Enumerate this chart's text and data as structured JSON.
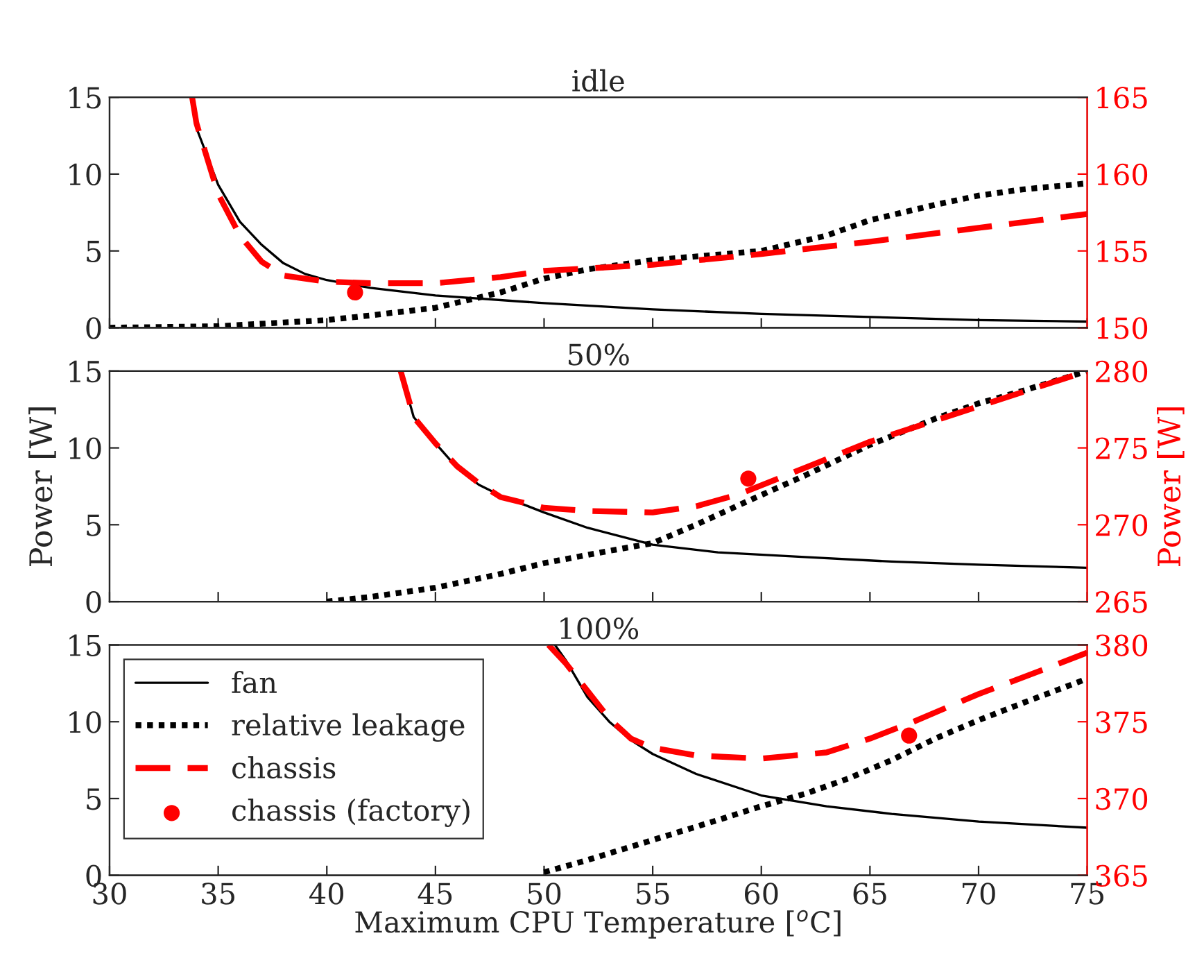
{
  "chart_data": [
    {
      "type": "line",
      "title": "idle",
      "xlim": [
        30,
        75
      ],
      "xticks": [
        30,
        35,
        40,
        45,
        50,
        55,
        60,
        65,
        70,
        75
      ],
      "ylim": [
        0,
        15
      ],
      "yticks": [
        0,
        5,
        10,
        15
      ],
      "y2lim": [
        150,
        165
      ],
      "y2ticks": [
        150,
        155,
        160,
        165
      ],
      "tick_labels": "y",
      "grid": false,
      "legend": false,
      "series": [
        {
          "type": "line",
          "color": "#000000",
          "line_style": "solid",
          "x": [
            33.8,
            34,
            35,
            36,
            37,
            38,
            39,
            40,
            42,
            45,
            50,
            55,
            60,
            65,
            70,
            75
          ],
          "values": [
            15,
            13,
            9.3,
            6.9,
            5.4,
            4.2,
            3.5,
            3.1,
            2.6,
            2.1,
            1.6,
            1.2,
            0.9,
            0.7,
            0.5,
            0.4
          ]
        },
        {
          "type": "line",
          "color": "#000000",
          "line_style": "dotted",
          "x": [
            30,
            35,
            40,
            42,
            45,
            48,
            50,
            52,
            55,
            60,
            63,
            65,
            68,
            70,
            72,
            75
          ],
          "values": [
            0,
            0.1,
            0.5,
            0.8,
            1.3,
            2.3,
            3.2,
            3.8,
            4.4,
            5.0,
            6.0,
            7.0,
            8.0,
            8.6,
            9.0,
            9.4
          ]
        },
        {
          "type": "line",
          "color": "#ff0000",
          "line_style": "dashed",
          "axis": "y2",
          "x": [
            33.8,
            34,
            35,
            36,
            37,
            38,
            40,
            42,
            45,
            48,
            50,
            55,
            60,
            65,
            70,
            75
          ],
          "values": [
            165,
            163.3,
            158.7,
            156,
            154.3,
            153.4,
            153.0,
            152.9,
            152.9,
            153.3,
            153.7,
            154.1,
            154.8,
            155.6,
            156.5,
            157.4
          ]
        },
        {
          "type": "scatter",
          "color": "#ff0000",
          "marker": "circle",
          "axis": "y2",
          "x": [
            41.3
          ],
          "values": [
            152.3
          ]
        }
      ]
    },
    {
      "type": "line",
      "title": "50%",
      "ylabel": "Power [W]",
      "y2label": "Power [W]",
      "xlim": [
        30,
        75
      ],
      "xticks": [
        30,
        35,
        40,
        45,
        50,
        55,
        60,
        65,
        70,
        75
      ],
      "ylim": [
        0,
        15
      ],
      "yticks": [
        0,
        5,
        10,
        15
      ],
      "y2lim": [
        265,
        280
      ],
      "y2ticks": [
        265,
        270,
        275,
        280
      ],
      "tick_labels": "y",
      "grid": false,
      "legend": false,
      "series": [
        {
          "type": "line",
          "color": "#000000",
          "line_style": "solid",
          "x": [
            43.4,
            44,
            45,
            46,
            47,
            48,
            50,
            52,
            55,
            58,
            62,
            66,
            70,
            75
          ],
          "values": [
            15,
            12,
            10.3,
            8.7,
            7.6,
            6.9,
            5.8,
            4.8,
            3.7,
            3.2,
            2.9,
            2.6,
            2.4,
            2.2
          ]
        },
        {
          "type": "line",
          "color": "#000000",
          "line_style": "dotted",
          "x": [
            40,
            42,
            45,
            48,
            50,
            53,
            55,
            57,
            59,
            62,
            65,
            68,
            70,
            72,
            75
          ],
          "values": [
            0,
            0.3,
            0.9,
            1.8,
            2.5,
            3.3,
            3.8,
            5.0,
            6.3,
            8.2,
            10.2,
            11.9,
            12.9,
            13.7,
            15.0
          ]
        },
        {
          "type": "line",
          "color": "#ff0000",
          "line_style": "dashed",
          "axis": "y2",
          "x": [
            43.4,
            44,
            45,
            46,
            47,
            48,
            50,
            52,
            55,
            57,
            59,
            62,
            65,
            70,
            75
          ],
          "values": [
            280,
            277,
            275.3,
            273.8,
            272.7,
            271.8,
            271.1,
            270.9,
            270.8,
            271.2,
            272.0,
            273.7,
            275.4,
            277.7,
            280
          ]
        },
        {
          "type": "scatter",
          "color": "#ff0000",
          "marker": "circle",
          "axis": "y2",
          "x": [
            59.4
          ],
          "values": [
            273.0
          ]
        }
      ]
    },
    {
      "type": "line",
      "title": "100%",
      "xlabel": "Maximum CPU Temperature [$^{o}$C]",
      "xlim": [
        30,
        75
      ],
      "xticks": [
        30,
        35,
        40,
        45,
        50,
        55,
        60,
        65,
        70,
        75
      ],
      "ylim": [
        0,
        15
      ],
      "yticks": [
        0,
        5,
        10,
        15
      ],
      "y2lim": [
        365,
        380
      ],
      "y2ticks": [
        365,
        370,
        375,
        380
      ],
      "grid": false,
      "legend": "top left",
      "series": [
        {
          "name": "fan",
          "type": "line",
          "color": "#000000",
          "line_style": "solid",
          "x": [
            50.5,
            51,
            52,
            53,
            54,
            55,
            57,
            60,
            63,
            66,
            70,
            75
          ],
          "values": [
            15,
            14,
            11.6,
            10.0,
            8.8,
            7.9,
            6.6,
            5.2,
            4.5,
            4.0,
            3.5,
            3.1
          ]
        },
        {
          "name": "relative leakage",
          "type": "line",
          "color": "#000000",
          "line_style": "dotted",
          "x": [
            50,
            52,
            55,
            58,
            60,
            62,
            64,
            66,
            68,
            70,
            72,
            75
          ],
          "values": [
            0.2,
            1.0,
            2.3,
            3.6,
            4.5,
            5.3,
            6.3,
            7.5,
            8.9,
            10.1,
            11.2,
            12.8
          ]
        },
        {
          "name": "chassis",
          "type": "line",
          "color": "#ff0000",
          "line_style": "dashed",
          "axis": "y2",
          "x": [
            50.2,
            51,
            52,
            53,
            54,
            55,
            57,
            60,
            63,
            65,
            67,
            70,
            73,
            75
          ],
          "values": [
            380,
            378.8,
            377,
            375.2,
            373.9,
            373.3,
            372.8,
            372.6,
            373.0,
            373.9,
            375.0,
            376.8,
            378.4,
            379.5
          ]
        },
        {
          "name": "chassis (factory)",
          "type": "scatter",
          "color": "#ff0000",
          "marker": "circle",
          "axis": "y2",
          "x": [
            66.8
          ],
          "values": [
            374.1
          ]
        }
      ]
    }
  ]
}
